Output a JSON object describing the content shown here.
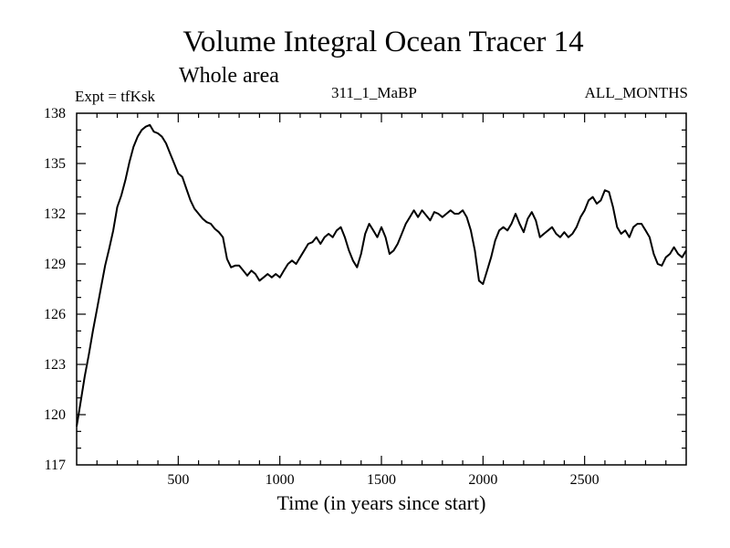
{
  "chart_data": {
    "type": "line",
    "title": "Volume Integral Ocean Tracer 14",
    "subtitle": "Whole area",
    "annotations": {
      "left": "Expt = tfKsk",
      "center": "311_1_MaBP",
      "right": "ALL_MONTHS"
    },
    "xlabel": "Time (in years since start)",
    "ylabel": "",
    "xlim": [
      0,
      3000
    ],
    "ylim": [
      117,
      138
    ],
    "xticks": [
      500,
      1000,
      1500,
      2000,
      2500
    ],
    "yticks": [
      117,
      120,
      123,
      126,
      129,
      132,
      135,
      138
    ],
    "grid": false,
    "series": [
      {
        "name": "Tracer 14",
        "color": "#000000",
        "x": [
          0,
          20,
          40,
          60,
          80,
          100,
          120,
          140,
          160,
          180,
          200,
          220,
          240,
          260,
          280,
          300,
          320,
          340,
          360,
          380,
          400,
          420,
          440,
          460,
          480,
          500,
          520,
          540,
          560,
          580,
          600,
          620,
          640,
          660,
          680,
          700,
          720,
          740,
          760,
          780,
          800,
          820,
          840,
          860,
          880,
          900,
          920,
          940,
          960,
          980,
          1000,
          1020,
          1040,
          1060,
          1080,
          1100,
          1120,
          1140,
          1160,
          1180,
          1200,
          1220,
          1240,
          1260,
          1280,
          1300,
          1320,
          1340,
          1360,
          1380,
          1400,
          1420,
          1440,
          1460,
          1480,
          1500,
          1520,
          1540,
          1560,
          1580,
          1600,
          1620,
          1640,
          1660,
          1680,
          1700,
          1720,
          1740,
          1760,
          1780,
          1800,
          1820,
          1840,
          1860,
          1880,
          1900,
          1920,
          1940,
          1960,
          1980,
          2000,
          2020,
          2040,
          2060,
          2080,
          2100,
          2120,
          2140,
          2160,
          2180,
          2200,
          2220,
          2240,
          2260,
          2280,
          2300,
          2320,
          2340,
          2360,
          2380,
          2400,
          2420,
          2440,
          2460,
          2480,
          2500,
          2520,
          2540,
          2560,
          2580,
          2600,
          2620,
          2640,
          2660,
          2680,
          2700,
          2720,
          2740,
          2760,
          2780,
          2800,
          2820,
          2840,
          2860,
          2880,
          2900,
          2920,
          2940,
          2960,
          2980,
          3000
        ],
        "values": [
          119.3,
          120.8,
          122.3,
          123.6,
          125.0,
          126.3,
          127.6,
          128.9,
          129.9,
          131.0,
          132.4,
          133.1,
          134.0,
          135.1,
          136.0,
          136.6,
          137.0,
          137.2,
          137.3,
          136.9,
          136.8,
          136.6,
          136.2,
          135.6,
          135.0,
          134.4,
          134.2,
          133.5,
          132.8,
          132.3,
          132.0,
          131.7,
          131.5,
          131.4,
          131.1,
          130.9,
          130.6,
          129.3,
          128.8,
          128.9,
          128.9,
          128.6,
          128.3,
          128.6,
          128.4,
          128.0,
          128.2,
          128.4,
          128.2,
          128.4,
          128.2,
          128.6,
          129.0,
          129.2,
          129.0,
          129.4,
          129.8,
          130.2,
          130.3,
          130.6,
          130.2,
          130.6,
          130.8,
          130.6,
          131.0,
          131.2,
          130.6,
          129.8,
          129.2,
          128.8,
          129.6,
          130.8,
          131.4,
          131.0,
          130.6,
          131.2,
          130.6,
          129.6,
          129.8,
          130.2,
          130.8,
          131.4,
          131.8,
          132.2,
          131.8,
          132.2,
          131.9,
          131.6,
          132.1,
          132.0,
          131.8,
          132.0,
          132.2,
          132.0,
          132.0,
          132.2,
          131.8,
          131.0,
          129.8,
          128.0,
          127.8,
          128.6,
          129.4,
          130.4,
          131.0,
          131.2,
          131.0,
          131.4,
          132.0,
          131.4,
          130.9,
          131.7,
          132.1,
          131.6,
          130.6,
          130.8,
          131.0,
          131.2,
          130.8,
          130.6,
          130.9,
          130.6,
          130.8,
          131.2,
          131.8,
          132.2,
          132.8,
          133.0,
          132.6,
          132.8,
          133.4,
          133.3,
          132.4,
          131.2,
          130.8,
          131.0,
          130.6,
          131.2,
          131.4,
          131.4,
          131.0,
          130.6,
          129.6,
          129.0,
          128.9,
          129.4,
          129.6,
          130.0,
          129.6,
          129.4,
          129.8
        ]
      }
    ]
  }
}
